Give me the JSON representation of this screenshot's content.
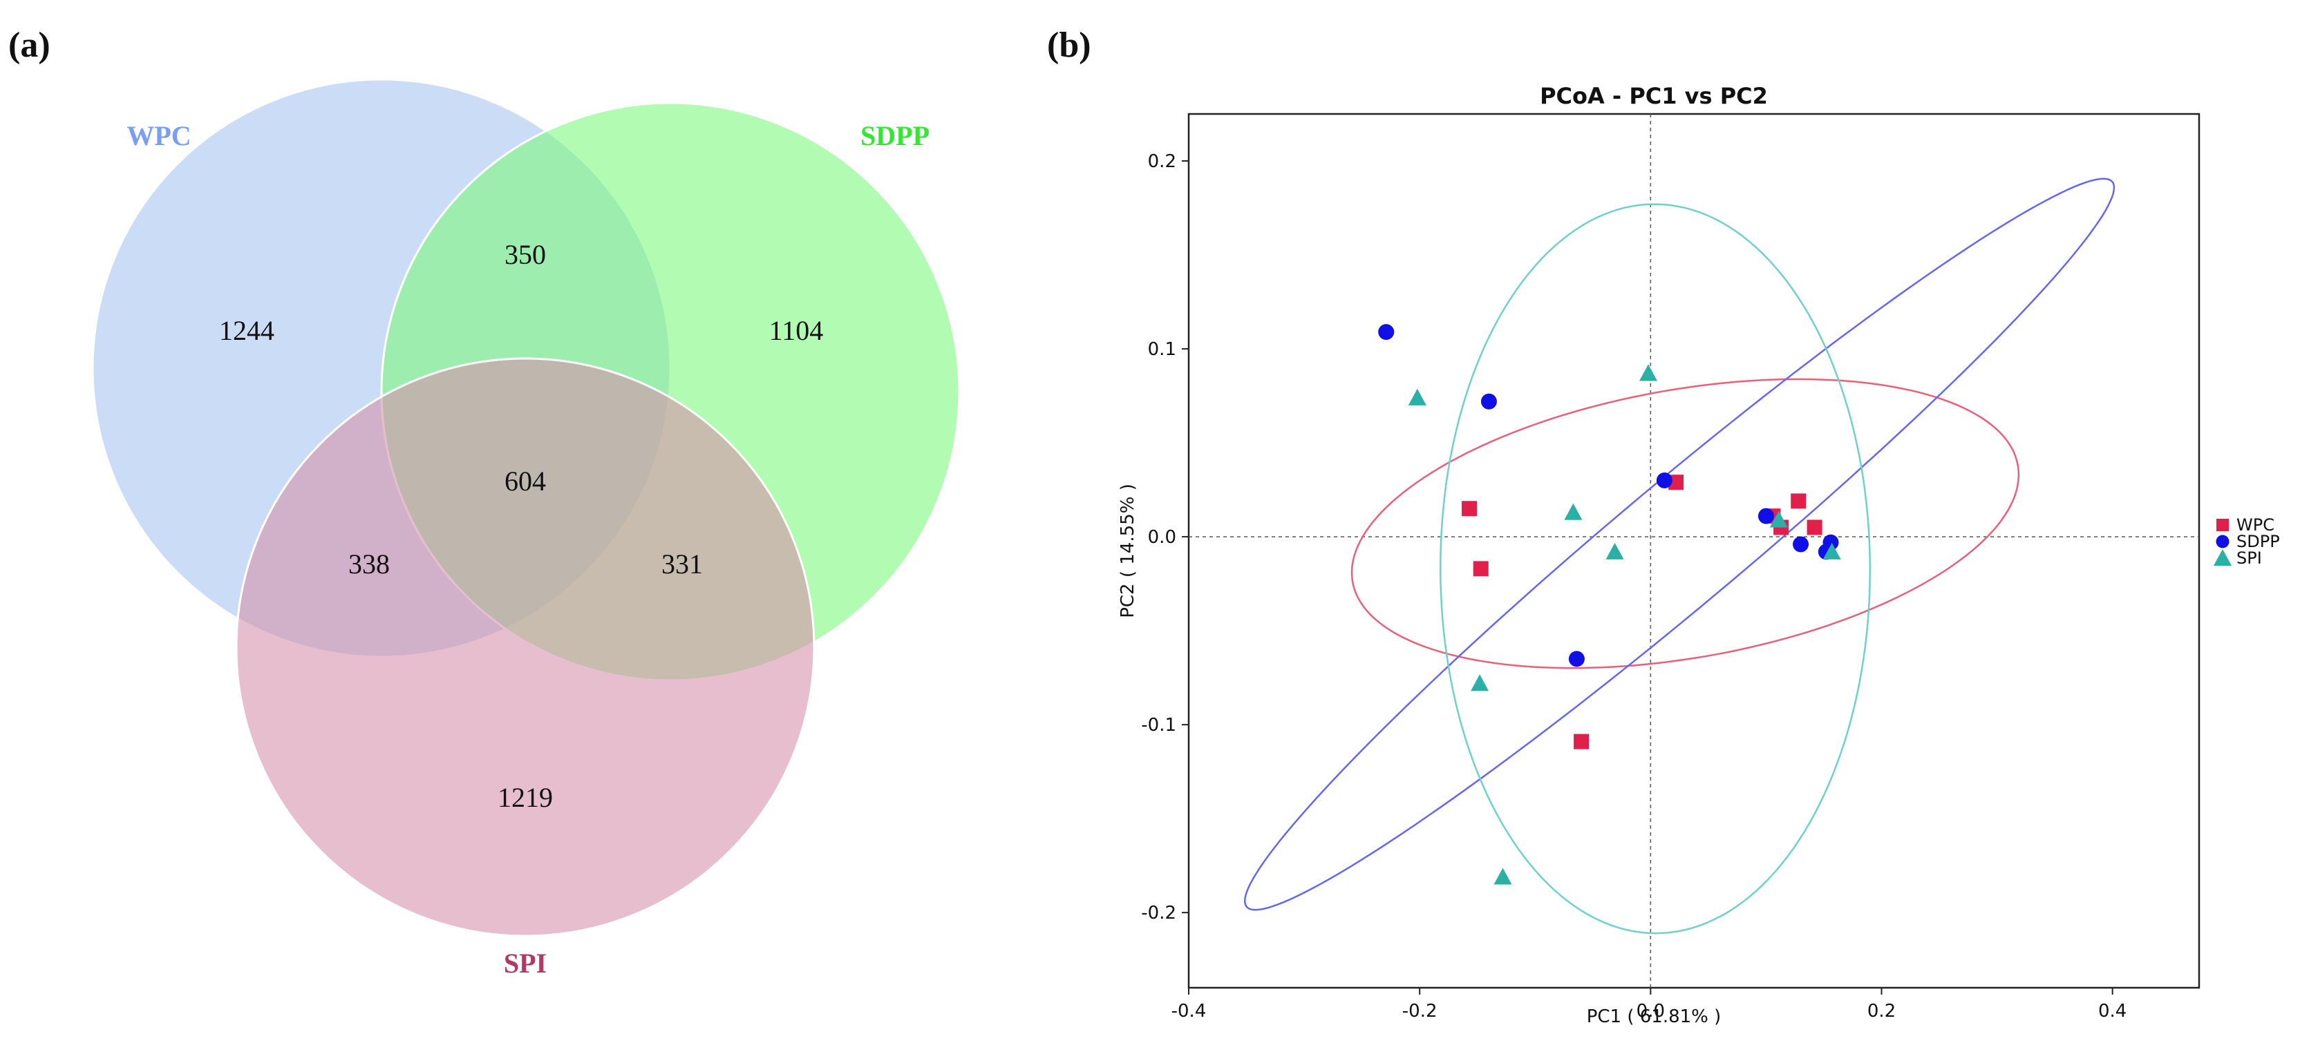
{
  "panels": {
    "a_label": "(a)",
    "b_label": "(b)"
  },
  "colors": {
    "wpc_fill": "#a9c4f2",
    "sdpp_fill": "#7ff97f",
    "spi_fill": "#d693ab",
    "wpc_label": "#7a9ff0",
    "sdpp_label": "#33e833",
    "spi_label": "#b03a64",
    "wpc_marker": "#e0204a",
    "sdpp_marker": "#1010e6",
    "spi_marker": "#2ab0a6",
    "wpc_ellipse": "#e8607a",
    "sdpp_ellipse": "#6666f0",
    "spi_ellipse": "#6fd2c8"
  },
  "chart_data": [
    {
      "type": "venn",
      "sets": [
        "WPC",
        "SDPP",
        "SPI"
      ],
      "regions": {
        "wpc_only": "1244",
        "sdpp_only": "1104",
        "spi_only": "1219",
        "wpc_sdpp": "350",
        "wpc_spi": "338",
        "sdpp_spi": "331",
        "all": "604"
      }
    },
    {
      "type": "scatter",
      "title": "PCoA - PC1 vs PC2",
      "xlabel": "PC1 ( 61.81% )",
      "ylabel": "PC2 ( 14.55% )",
      "xlim": [
        -0.4,
        0.475
      ],
      "ylim": [
        -0.24,
        0.225
      ],
      "xticks": [
        -0.4,
        -0.2,
        0.0,
        0.2,
        0.4
      ],
      "xtick_labels": [
        "-0.4",
        "-0.2",
        "0.0",
        "0.2",
        "0.4"
      ],
      "yticks": [
        -0.2,
        -0.1,
        0.0,
        0.1,
        0.2
      ],
      "ytick_labels": [
        "-0.2",
        "-0.1",
        "0.0",
        "0.1",
        "0.2"
      ],
      "legend": [
        {
          "key": "WPC",
          "label": "WPC",
          "marker": "square"
        },
        {
          "key": "SDPP",
          "label": "SDPP",
          "marker": "circle"
        },
        {
          "key": "SPI",
          "label": "SPI",
          "marker": "triangle"
        }
      ],
      "series": [
        {
          "name": "WPC",
          "marker": "square",
          "points": [
            [
              -0.157,
              0.015
            ],
            [
              -0.147,
              -0.017
            ],
            [
              0.022,
              0.029
            ],
            [
              0.106,
              0.011
            ],
            [
              0.113,
              0.005
            ],
            [
              0.128,
              0.019
            ],
            [
              0.142,
              0.005
            ],
            [
              -0.06,
              -0.109
            ]
          ]
        },
        {
          "name": "SDPP",
          "marker": "circle",
          "points": [
            [
              -0.229,
              0.109
            ],
            [
              -0.14,
              0.072
            ],
            [
              0.012,
              0.03
            ],
            [
              0.1,
              0.011
            ],
            [
              0.13,
              -0.004
            ],
            [
              0.152,
              -0.008
            ],
            [
              0.156,
              -0.003
            ],
            [
              -0.064,
              -0.065
            ]
          ]
        },
        {
          "name": "SPI",
          "marker": "triangle",
          "points": [
            [
              -0.202,
              0.074
            ],
            [
              -0.067,
              0.013
            ],
            [
              -0.031,
              -0.008
            ],
            [
              -0.002,
              0.087
            ],
            [
              0.111,
              0.009
            ],
            [
              0.157,
              -0.008
            ],
            [
              -0.148,
              -0.078
            ],
            [
              -0.128,
              -0.181
            ]
          ]
        }
      ],
      "ellipses": [
        {
          "name": "WPC",
          "cx": 0.03,
          "cy": 0.007,
          "rx": 0.29,
          "ry": 0.072,
          "angle": 5.5
        },
        {
          "name": "SDPP",
          "cx": 0.025,
          "cy": -0.004,
          "rx": 0.422,
          "ry": 0.038,
          "angle": 27
        },
        {
          "name": "SPI",
          "cx": 0.004,
          "cy": -0.017,
          "rx": 0.186,
          "ry": 0.194,
          "angle": 2
        }
      ]
    }
  ]
}
